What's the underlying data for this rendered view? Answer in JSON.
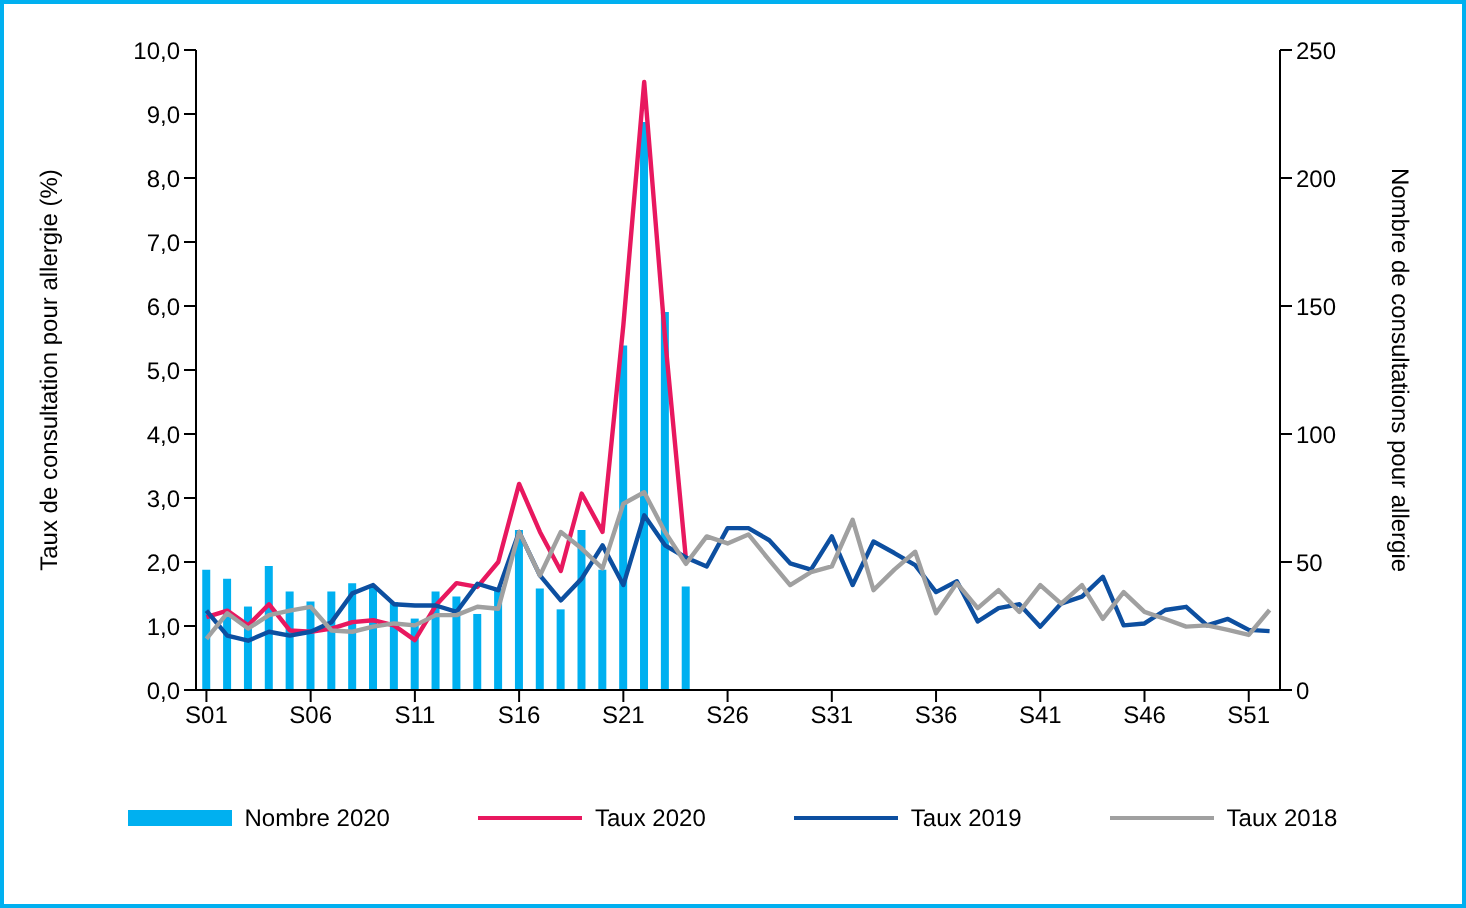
{
  "chart_data": {
    "type": "line",
    "ylabel": "Taux de consultation pour allergie (%)",
    "y2label": "Nombre de consultations pour allergie",
    "categories": [
      "S01",
      null,
      null,
      null,
      null,
      "S06",
      null,
      null,
      null,
      null,
      "S11",
      null,
      null,
      null,
      null,
      "S16",
      null,
      null,
      null,
      null,
      "S21",
      null,
      null,
      null,
      null,
      "S26",
      null,
      null,
      null,
      null,
      "S31",
      null,
      null,
      null,
      null,
      "S36",
      null,
      null,
      null,
      null,
      "S41",
      null,
      null,
      null,
      null,
      "S46",
      null,
      null,
      null,
      null,
      "S51",
      null
    ],
    "ylim": [
      0,
      10
    ],
    "yticks": [
      {
        "value": 0,
        "label": "0,0"
      },
      {
        "value": 1,
        "label": "1,0"
      },
      {
        "value": 2,
        "label": "2,0"
      },
      {
        "value": 3,
        "label": "3,0"
      },
      {
        "value": 4,
        "label": "4,0"
      },
      {
        "value": 5,
        "label": "5,0"
      },
      {
        "value": 6,
        "label": "6,0"
      },
      {
        "value": 7,
        "label": "7,0"
      },
      {
        "value": 8,
        "label": "8,0"
      },
      {
        "value": 9,
        "label": "9,0"
      },
      {
        "value": 10,
        "label": "10,0"
      }
    ],
    "y2lim": [
      0,
      250
    ],
    "y2ticks": [
      0,
      50,
      100,
      150,
      200,
      250
    ],
    "grid": false,
    "legend": "bottom",
    "marker": "none",
    "series": [
      {
        "name": "Nombre 2020",
        "type": "bar",
        "axis": "y2",
        "color": "#00b0f0",
        "values": [
          47,
          43.5,
          32.6,
          48.4,
          38.5,
          34.6,
          38.5,
          41.7,
          40.4,
          34.4,
          27.9,
          38.5,
          36.5,
          29.7,
          39.6,
          62.5,
          39.6,
          31.5,
          62.5,
          47,
          134.6,
          221.9,
          147.7,
          40.4,
          null,
          null,
          null,
          null,
          null,
          null,
          null,
          null,
          null,
          null,
          null,
          null,
          null,
          null,
          null,
          null,
          null,
          null,
          null,
          null,
          null,
          null,
          null,
          null,
          null,
          null,
          null,
          null
        ]
      },
      {
        "name": "Taux 2020",
        "color": "#e8185f",
        "values": [
          1.14,
          1.24,
          1.01,
          1.34,
          0.93,
          0.91,
          0.96,
          1.06,
          1.09,
          1.01,
          0.78,
          1.32,
          1.67,
          1.61,
          2.0,
          3.22,
          2.47,
          1.86,
          3.07,
          2.47,
          5.7,
          9.5,
          5.5,
          2.05,
          null,
          null,
          null,
          null,
          null,
          null,
          null,
          null,
          null,
          null,
          null,
          null,
          null,
          null,
          null,
          null,
          null,
          null,
          null,
          null,
          null,
          null,
          null,
          null,
          null,
          null,
          null,
          null
        ]
      },
      {
        "name": "Taux 2019",
        "color": "#0d4fa0",
        "values": [
          1.24,
          0.85,
          0.77,
          0.91,
          0.85,
          0.91,
          1.06,
          1.51,
          1.64,
          1.34,
          1.32,
          1.32,
          1.22,
          1.66,
          1.56,
          2.47,
          1.79,
          1.4,
          1.74,
          2.26,
          1.64,
          2.73,
          2.26,
          2.07,
          1.93,
          2.53,
          2.53,
          2.34,
          1.98,
          1.88,
          2.4,
          1.64,
          2.32,
          2.14,
          1.95,
          1.53,
          1.7,
          1.07,
          1.28,
          1.34,
          0.99,
          1.35,
          1.46,
          1.77,
          1.01,
          1.04,
          1.25,
          1.3,
          1.01,
          1.11,
          0.94,
          0.92
        ]
      },
      {
        "name": "Taux 2018",
        "color": "#a0a0a0",
        "values": [
          0.8,
          1.2,
          0.96,
          1.17,
          1.24,
          1.3,
          0.93,
          0.91,
          0.99,
          1.04,
          1.01,
          1.17,
          1.17,
          1.3,
          1.27,
          2.47,
          1.79,
          2.47,
          2.21,
          1.9,
          2.91,
          3.09,
          2.47,
          1.97,
          2.4,
          2.29,
          2.43,
          2.03,
          1.64,
          1.84,
          1.93,
          2.66,
          1.56,
          1.88,
          2.16,
          1.2,
          1.67,
          1.28,
          1.56,
          1.22,
          1.64,
          1.35,
          1.64,
          1.11,
          1.53,
          1.22,
          1.11,
          0.99,
          1.01,
          0.94,
          0.86,
          1.25
        ]
      }
    ]
  }
}
